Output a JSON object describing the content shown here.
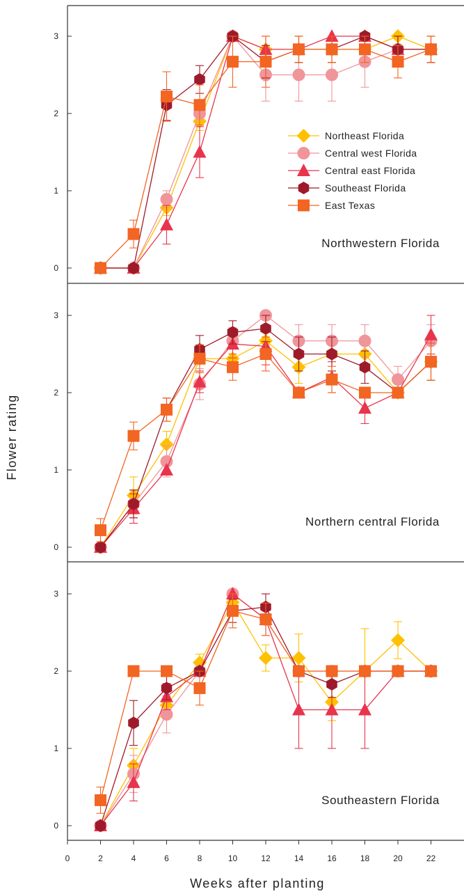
{
  "chart_data": {
    "type": "line",
    "shared": {
      "xlabel": "Weeks after planting",
      "ylabel": "Flower rating",
      "xlim": [
        0,
        24
      ],
      "ylim": [
        -0.2,
        3.35
      ],
      "xticks": [
        0,
        2,
        4,
        6,
        8,
        10,
        12,
        14,
        16,
        18,
        20,
        22
      ],
      "yticks": [
        0,
        1,
        2,
        3
      ],
      "x": [
        2,
        4,
        6,
        8,
        10,
        12,
        14,
        16,
        18,
        20,
        22
      ],
      "legend_placement": "right, inside top panel",
      "grid": false,
      "error_bars": true
    },
    "series_styles": [
      {
        "name": "Northeast Florida",
        "color": "#FFC000",
        "marker": "diamond"
      },
      {
        "name": "Central west Florida",
        "color": "#F0959A",
        "marker": "circle"
      },
      {
        "name": "Central east Florida",
        "color": "#E8344D",
        "marker": "triangle"
      },
      {
        "name": "Southeast Florida",
        "color": "#9E1A2A",
        "marker": "hexagon"
      },
      {
        "name": "East Texas",
        "color": "#F26522",
        "marker": "square"
      }
    ],
    "panels": [
      {
        "label": "Northwestern Florida",
        "series": [
          {
            "name": "Northeast Florida",
            "values": [
              0,
              0,
              0.78,
              1.9,
              3.0,
              2.83,
              2.83,
              2.83,
              2.83,
              3.0,
              2.83
            ],
            "errors": [
              0,
              0,
              0.1,
              0.12,
              0.0,
              0.17,
              0.17,
              0.17,
              0.17,
              0.0,
              0.17
            ]
          },
          {
            "name": "Central west Florida",
            "values": [
              0,
              0,
              0.89,
              2.0,
              3.0,
              2.5,
              2.5,
              2.5,
              2.67,
              2.83,
              2.83
            ],
            "errors": [
              0,
              0,
              0.11,
              0.15,
              0.0,
              0.34,
              0.34,
              0.34,
              0.33,
              0.17,
              0.17
            ]
          },
          {
            "name": "Central east Florida",
            "values": [
              0,
              0,
              0.56,
              1.5,
              3.0,
              2.83,
              2.83,
              3.0,
              3.0,
              2.83,
              2.83
            ],
            "errors": [
              0,
              0,
              0.25,
              0.33,
              0.0,
              0.17,
              0.17,
              0.0,
              0.0,
              0.17,
              0.17
            ]
          },
          {
            "name": "Southeast Florida",
            "values": [
              0,
              0,
              2.11,
              2.44,
              3.0,
              2.67,
              2.83,
              2.83,
              3.0,
              2.83,
              2.83
            ],
            "errors": [
              0,
              0,
              0.2,
              0.18,
              0.0,
              0.21,
              0.17,
              0.17,
              0.0,
              0.17,
              0.17
            ]
          },
          {
            "name": "East Texas",
            "values": [
              0,
              0.44,
              2.22,
              2.11,
              2.67,
              2.67,
              2.83,
              2.83,
              2.83,
              2.67,
              2.83
            ],
            "errors": [
              0,
              0.18,
              0.32,
              0.26,
              0.33,
              0.33,
              0.17,
              0.17,
              0.17,
              0.21,
              0.17
            ]
          }
        ]
      },
      {
        "label": "Northern central Florida",
        "series": [
          {
            "name": "Northeast Florida",
            "values": [
              0,
              0.67,
              1.33,
              2.44,
              2.44,
              2.67,
              2.33,
              2.5,
              2.5,
              2.0,
              2.4
            ],
            "errors": [
              0,
              0.24,
              0.17,
              0.18,
              0.18,
              0.21,
              0.21,
              0.22,
              0.22,
              0.0,
              0.24
            ]
          },
          {
            "name": "Central west Florida",
            "values": [
              0,
              0.56,
              1.11,
              2.11,
              2.67,
              3.0,
              2.67,
              2.67,
              2.67,
              2.17,
              2.67
            ],
            "errors": [
              0,
              0.18,
              0.2,
              0.2,
              0.17,
              0.0,
              0.21,
              0.21,
              0.21,
              0.17,
              0.21
            ]
          },
          {
            "name": "Central east Florida",
            "values": [
              0,
              0.5,
              1.0,
              2.14,
              2.63,
              2.6,
              2.0,
              2.2,
              1.8,
              2.0,
              2.75
            ],
            "errors": [
              0,
              0.19,
              0.0,
              0.14,
              0.18,
              0.24,
              0.0,
              0.2,
              0.2,
              0.0,
              0.25
            ]
          },
          {
            "name": "Southeast Florida",
            "values": [
              0,
              0.56,
              1.78,
              2.56,
              2.78,
              2.83,
              2.5,
              2.5,
              2.33,
              2.0,
              2.4
            ],
            "errors": [
              0,
              0.18,
              0.15,
              0.18,
              0.15,
              0.17,
              0.22,
              0.22,
              0.21,
              0.0,
              0.24
            ]
          },
          {
            "name": "East Texas",
            "values": [
              0.22,
              1.44,
              1.78,
              2.44,
              2.33,
              2.5,
              2.0,
              2.17,
              2.0,
              2.0,
              2.4
            ],
            "errors": [
              0.15,
              0.18,
              0.15,
              0.18,
              0.17,
              0.22,
              0.0,
              0.17,
              0.0,
              0.0,
              0.24
            ]
          }
        ]
      },
      {
        "label": "Southeastern Florida",
        "series": [
          {
            "name": "Northeast Florida",
            "values": [
              0,
              0.78,
              1.56,
              2.11,
              2.89,
              2.17,
              2.17,
              1.6,
              2.0,
              2.4,
              2.0
            ],
            "errors": [
              0,
              0.22,
              0.18,
              0.11,
              0.11,
              0.17,
              0.31,
              0.24,
              0.55,
              0.24,
              0.0
            ]
          },
          {
            "name": "Central west Florida",
            "values": [
              0,
              0.67,
              1.44,
              2.0,
              3.0,
              2.67,
              2.0,
              2.0,
              2.0,
              2.0,
              2.0
            ],
            "errors": [
              0,
              0.24,
              0.24,
              0.0,
              0.0,
              0.21,
              0.0,
              0.0,
              0.0,
              0.0,
              0.0
            ]
          },
          {
            "name": "Central east Florida",
            "values": [
              0,
              0.56,
              1.67,
              2.0,
              3.0,
              2.67,
              1.5,
              1.5,
              1.5,
              2.0,
              2.0
            ],
            "errors": [
              0,
              0.24,
              0.17,
              0.0,
              0.0,
              0.21,
              0.5,
              0.5,
              0.5,
              0.0,
              0.0
            ]
          },
          {
            "name": "Southeast Florida",
            "values": [
              0,
              1.33,
              1.78,
              2.0,
              2.78,
              2.83,
              2.0,
              1.83,
              2.0,
              2.0,
              2.0
            ],
            "errors": [
              0,
              0.29,
              0.15,
              0.0,
              0.15,
              0.17,
              0.0,
              0.17,
              0.0,
              0.0,
              0.0
            ]
          },
          {
            "name": "East Texas",
            "values": [
              0.33,
              2.0,
              2.0,
              1.78,
              2.78,
              2.67,
              2.0,
              2.0,
              2.0,
              2.0,
              2.0
            ],
            "errors": [
              0.17,
              0.0,
              0.0,
              0.22,
              0.22,
              0.21,
              0.0,
              0.0,
              0.0,
              0.0,
              0.0
            ]
          }
        ]
      }
    ]
  }
}
